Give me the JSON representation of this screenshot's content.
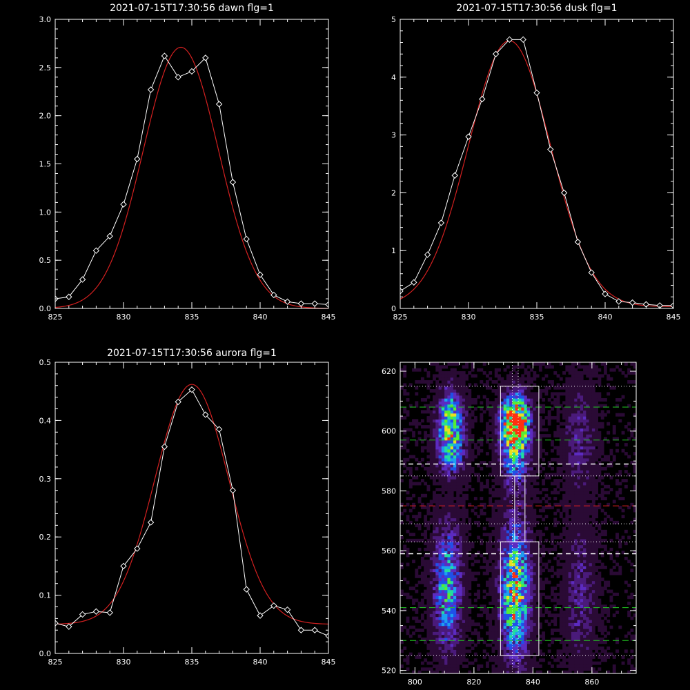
{
  "colors": {
    "background": "#000000",
    "axes": "#ffffff",
    "measured": "#ffffff",
    "fit": "#d42020",
    "green_line": "#22cc22",
    "white_dash": "#ffffff",
    "red_dash": "#e02020",
    "dotted": "#ffffff"
  },
  "chart_data": [
    {
      "type": "line",
      "title": "2021-07-15T17:30:56 dawn flg=1",
      "xlim": [
        825,
        845
      ],
      "ylim": [
        0,
        3.0
      ],
      "xticks": [
        825,
        830,
        835,
        840,
        845
      ],
      "xticklabels": [
        "825",
        "830",
        "835",
        "840",
        "845"
      ],
      "yticks": [
        0,
        0.5,
        1.0,
        1.5,
        2.0,
        2.5,
        3.0
      ],
      "yticklabels": [
        "0.0",
        "0.5",
        "1.0",
        "1.5",
        "2.0",
        "2.5",
        "3.0"
      ],
      "series": [
        {
          "style": "measured",
          "marker": "diamond",
          "x": [
            825,
            826,
            827,
            828,
            829,
            830,
            831,
            832,
            833,
            834,
            835,
            836,
            837,
            838,
            839,
            840,
            841,
            842,
            843,
            844,
            845
          ],
          "y": [
            0.1,
            0.12,
            0.3,
            0.6,
            0.75,
            1.08,
            1.55,
            2.27,
            2.62,
            2.4,
            2.46,
            2.6,
            2.12,
            1.31,
            0.72,
            0.35,
            0.14,
            0.07,
            0.05,
            0.05,
            0.04
          ]
        },
        {
          "style": "fit",
          "model": "gaussian",
          "amplitude": 2.71,
          "center": 834.2,
          "sigma": 2.75,
          "offset": 0.0
        }
      ]
    },
    {
      "type": "line",
      "title": "2021-07-15T17:30:56 dusk flg=1",
      "xlim": [
        825,
        845
      ],
      "ylim": [
        0,
        5
      ],
      "xticks": [
        825,
        830,
        835,
        840,
        845
      ],
      "xticklabels": [
        "825",
        "830",
        "835",
        "840",
        "845"
      ],
      "yticks": [
        0,
        1,
        2,
        3,
        4,
        5
      ],
      "yticklabels": [
        "0",
        "1",
        "2",
        "3",
        "4",
        "5"
      ],
      "series": [
        {
          "style": "measured",
          "marker": "diamond",
          "x": [
            825,
            826,
            827,
            828,
            829,
            830,
            831,
            832,
            833,
            834,
            835,
            836,
            837,
            838,
            839,
            840,
            841,
            842,
            843,
            844,
            845
          ],
          "y": [
            0.3,
            0.45,
            0.93,
            1.48,
            2.3,
            2.97,
            3.62,
            4.4,
            4.65,
            4.65,
            3.73,
            2.75,
            2.0,
            1.15,
            0.62,
            0.25,
            0.12,
            0.1,
            0.07,
            0.05,
            0.05
          ]
        },
        {
          "style": "fit",
          "model": "gaussian",
          "amplitude": 4.6,
          "center": 833.0,
          "sigma": 3.0,
          "offset": 0.03
        }
      ]
    },
    {
      "type": "line",
      "title": "2021-07-15T17:30:56 aurora flg=1",
      "xlim": [
        825,
        845
      ],
      "ylim": [
        0,
        0.5
      ],
      "xticks": [
        825,
        830,
        835,
        840,
        845
      ],
      "xticklabels": [
        "825",
        "830",
        "835",
        "840",
        "845"
      ],
      "yticks": [
        0,
        0.1,
        0.2,
        0.3,
        0.4,
        0.5
      ],
      "yticklabels": [
        "0.0",
        "0.1",
        "0.2",
        "0.3",
        "0.4",
        "0.5"
      ],
      "series": [
        {
          "style": "measured",
          "marker": "diamond",
          "x": [
            825,
            826,
            827,
            828,
            829,
            830,
            831,
            832,
            833,
            834,
            835,
            836,
            837,
            838,
            839,
            840,
            841,
            842,
            843,
            844,
            845
          ],
          "y": [
            0.052,
            0.046,
            0.067,
            0.072,
            0.07,
            0.15,
            0.18,
            0.225,
            0.355,
            0.432,
            0.453,
            0.41,
            0.385,
            0.28,
            0.11,
            0.065,
            0.082,
            0.075,
            0.04,
            0.04,
            0.03
          ]
        },
        {
          "style": "fit",
          "model": "gaussian",
          "amplitude": 0.412,
          "center": 835.0,
          "sigma": 2.7,
          "offset": 0.05
        }
      ]
    },
    {
      "type": "heatmap",
      "title": "",
      "xlim": [
        795,
        875
      ],
      "ylim": [
        519,
        623
      ],
      "xticks": [
        800,
        820,
        840,
        860
      ],
      "xticklabels": [
        "800",
        "820",
        "840",
        "860"
      ],
      "yticks": [
        520,
        540,
        560,
        580,
        600,
        620
      ],
      "yticklabels": [
        "520",
        "540",
        "560",
        "580",
        "600",
        "620"
      ],
      "colormap": [
        "#000000",
        "#2a0a35",
        "#4a1a7a",
        "#5c2bc0",
        "#2050e8",
        "#1e9ff0",
        "#22dda0",
        "#55ee33",
        "#e8e020",
        "#ff3010"
      ],
      "intensity_blobs": [
        {
          "x": 812,
          "y": 603,
          "sx": 2.8,
          "sy": 7.0,
          "amp": 0.75
        },
        {
          "x": 812,
          "y": 592,
          "sx": 3.0,
          "sy": 5.0,
          "amp": 0.35
        },
        {
          "x": 811,
          "y": 548,
          "sx": 3.2,
          "sy": 14.0,
          "amp": 0.55
        },
        {
          "x": 834,
          "y": 604,
          "sx": 3.0,
          "sy": 5.5,
          "amp": 1.0
        },
        {
          "x": 834,
          "y": 595,
          "sx": 3.3,
          "sy": 8.0,
          "amp": 0.55
        },
        {
          "x": 834,
          "y": 546,
          "sx": 3.3,
          "sy": 14.0,
          "amp": 0.8
        },
        {
          "x": 834,
          "y": 574,
          "sx": 3.5,
          "sy": 10.0,
          "amp": 0.07
        },
        {
          "x": 856,
          "y": 598,
          "sx": 3.5,
          "sy": 12.0,
          "amp": 0.22
        },
        {
          "x": 856,
          "y": 545,
          "sx": 3.5,
          "sy": 16.0,
          "amp": 0.22
        }
      ],
      "overlays": {
        "boxes": [
          {
            "x0": 829,
            "x1": 842,
            "y0": 585,
            "y1": 615
          },
          {
            "x0": 829,
            "x1": 842,
            "y0": 525,
            "y1": 563
          },
          {
            "x0": 833.8,
            "x1": 837.3,
            "y0": 563,
            "y1": 585
          }
        ],
        "dotted_h": [
          615,
          585,
          569,
          563,
          525
        ],
        "green_h": [
          608,
          597,
          541,
          530
        ],
        "white_dash_h": [
          589,
          559
        ],
        "red_dash_h": [
          575
        ],
        "dotted_v": [
          833,
          835
        ]
      }
    }
  ]
}
